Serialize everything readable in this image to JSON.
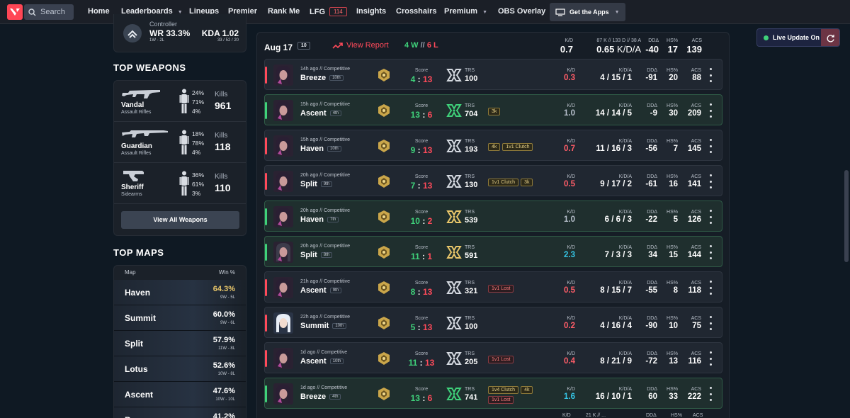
{
  "nav": {
    "search_placeholder": "Search",
    "items": [
      "Home",
      "Leaderboards",
      "Lineups",
      "Premier",
      "Rank Me",
      "LFG",
      "Insights",
      "Crosshairs",
      "Premium",
      "OBS Overlay"
    ],
    "lfg_badge": "114",
    "get_apps": "Get the Apps"
  },
  "live_update": "Live Update On",
  "profile_card": {
    "role": "Controller",
    "wr": "WR 33.3%",
    "record": "1W - 2L",
    "kda": "KDA 1.02",
    "kda_detail": "33 / 52 / 20"
  },
  "top_weapons": {
    "title": "TOP WEAPONS",
    "kills_label": "Kills",
    "items": [
      {
        "name": "Vandal",
        "class": "Assault Rifles",
        "head": "24%",
        "body": "71%",
        "legs": "4%",
        "kills": "961"
      },
      {
        "name": "Guardian",
        "class": "Assault Rifles",
        "head": "18%",
        "body": "78%",
        "legs": "4%",
        "kills": "118"
      },
      {
        "name": "Sheriff",
        "class": "Sidearms",
        "head": "36%",
        "body": "61%",
        "legs": "3%",
        "kills": "110"
      }
    ],
    "view_all": "View All Weapons"
  },
  "top_maps": {
    "title": "TOP MAPS",
    "col_map": "Map",
    "col_win": "Win %",
    "items": [
      {
        "name": "Haven",
        "win": "64.3%",
        "rec": "9W - 5L",
        "color": "#e8c66a"
      },
      {
        "name": "Summit",
        "win": "60.0%",
        "rec": "9W - 6L",
        "color": "#ffffff"
      },
      {
        "name": "Split",
        "win": "57.9%",
        "rec": "11W - 8L",
        "color": "#ffffff"
      },
      {
        "name": "Lotus",
        "win": "52.6%",
        "rec": "10W - 8L",
        "color": "#ffffff"
      },
      {
        "name": "Ascent",
        "win": "47.6%",
        "rec": "10W - 10L",
        "color": "#ffffff"
      },
      {
        "name": "Breeze",
        "win": "41.2%",
        "rec": "",
        "color": "#ffffff"
      }
    ]
  },
  "day_header": {
    "date": "Aug 17",
    "count": "10",
    "view_report": "View Report",
    "wins": "4 W",
    "sep": "//",
    "losses": "6 L",
    "kd_label": "K/D",
    "kd": "0.7",
    "kda_detail": "87 K // 133 D // 38 A",
    "kda": "0.65",
    "kda_suffix": "K/D/A",
    "dd_label": "DDΔ",
    "dd": "-40",
    "hs_label": "HS%",
    "hs": "17",
    "acs_label": "ACS",
    "acs": "139"
  },
  "labels": {
    "score": "Score",
    "trs": "TRS",
    "kd": "K/D",
    "kda": "K/D/A",
    "dd": "DDΔ",
    "hs": "HS%",
    "acs": "ACS"
  },
  "matches": [
    {
      "win": false,
      "ago": "14h ago",
      "mode": "Competitive",
      "map": "Breeze",
      "place": "10th",
      "s1": "4",
      "s2": "13",
      "trs": "100",
      "badges": [],
      "kd": "0.3",
      "k": "4",
      "d": "15",
      "a": "1",
      "dd": "-91",
      "hs": "20",
      "acs": "88",
      "agent": "dark"
    },
    {
      "win": true,
      "ago": "15h ago",
      "mode": "Competitive",
      "map": "Ascent",
      "place": "4th",
      "s1": "13",
      "s2": "6",
      "trs": "704",
      "badges": [
        {
          "t": "3k",
          "c": "gold"
        }
      ],
      "kd": "1.0",
      "k": "14",
      "d": "14",
      "a": "5",
      "dd": "-9",
      "hs": "30",
      "acs": "209",
      "agent": "dark"
    },
    {
      "win": false,
      "ago": "15h ago",
      "mode": "Competitive",
      "map": "Haven",
      "place": "10th",
      "s1": "9",
      "s2": "13",
      "trs": "193",
      "badges": [
        {
          "t": "4k",
          "c": "gold"
        },
        {
          "t": "1v1 Clutch",
          "c": "gold"
        }
      ],
      "kd": "0.7",
      "k": "11",
      "d": "16",
      "a": "3",
      "dd": "-56",
      "hs": "7",
      "acs": "145",
      "agent": "dark"
    },
    {
      "win": false,
      "ago": "20h ago",
      "mode": "Competitive",
      "map": "Split",
      "place": "9th",
      "s1": "7",
      "s2": "13",
      "trs": "130",
      "badges": [
        {
          "t": "1v1 Clutch",
          "c": "gold"
        },
        {
          "t": "3k",
          "c": "gold"
        }
      ],
      "kd": "0.5",
      "k": "9",
      "d": "17",
      "a": "2",
      "dd": "-61",
      "hs": "16",
      "acs": "141",
      "agent": "dark"
    },
    {
      "win": true,
      "ago": "20h ago",
      "mode": "Competitive",
      "map": "Haven",
      "place": "7th",
      "s1": "10",
      "s2": "2",
      "trs": "539",
      "badges": [],
      "kd": "1.0",
      "k": "6",
      "d": "6",
      "a": "3",
      "dd": "-22",
      "hs": "5",
      "acs": "126",
      "agent": "dark"
    },
    {
      "win": true,
      "ago": "20h ago",
      "mode": "Competitive",
      "map": "Split",
      "place": "8th",
      "s1": "11",
      "s2": "1",
      "trs": "591",
      "badges": [],
      "kd": "2.3",
      "k": "7",
      "d": "3",
      "a": "3",
      "dd": "34",
      "hs": "15",
      "acs": "144",
      "agent": "light"
    },
    {
      "win": false,
      "ago": "21h ago",
      "mode": "Competitive",
      "map": "Ascent",
      "place": "9th",
      "s1": "8",
      "s2": "13",
      "trs": "321",
      "badges": [
        {
          "t": "1v1 Lost",
          "c": "red"
        }
      ],
      "kd": "0.5",
      "k": "8",
      "d": "15",
      "a": "7",
      "dd": "-55",
      "hs": "8",
      "acs": "118",
      "agent": "dark"
    },
    {
      "win": false,
      "ago": "22h ago",
      "mode": "Competitive",
      "map": "Summit",
      "place": "10th",
      "s1": "5",
      "s2": "13",
      "trs": "100",
      "badges": [],
      "kd": "0.2",
      "k": "4",
      "d": "16",
      "a": "4",
      "dd": "-90",
      "hs": "10",
      "acs": "75",
      "agent": "white"
    },
    {
      "win": false,
      "ago": "1d ago",
      "mode": "Competitive",
      "map": "Ascent",
      "place": "10th",
      "s1": "11",
      "s2": "13",
      "trs": "205",
      "badges": [
        {
          "t": "1v1 Lost",
          "c": "red"
        }
      ],
      "kd": "0.4",
      "k": "8",
      "d": "21",
      "a": "9",
      "dd": "-72",
      "hs": "13",
      "acs": "116",
      "agent": "dark"
    },
    {
      "win": true,
      "ago": "1d ago",
      "mode": "Competitive",
      "map": "Breeze",
      "place": "4th",
      "s1": "13",
      "s2": "6",
      "trs": "741",
      "badges": [
        {
          "t": "1v4 Clutch",
          "c": "gold"
        },
        {
          "t": "4k",
          "c": "gold"
        },
        {
          "t": "1v1 Lost",
          "c": "red"
        }
      ],
      "kd": "1.6",
      "k": "16",
      "d": "10",
      "a": "1",
      "dd": "60",
      "hs": "33",
      "acs": "222",
      "agent": "dark"
    }
  ],
  "next_header": {
    "kd": "K/D",
    "kda_detail": "21 K // ...",
    "dd": "DDΔ",
    "hs": "HS%",
    "acs": "ACS"
  },
  "colors": {
    "win": "#3fd17a",
    "loss": "#ff4a5a",
    "kd_win": "#35c6e6",
    "kd_loss": "#ff5d68",
    "kd_even": "#b7c0cc",
    "gold": "#e8c66a"
  }
}
